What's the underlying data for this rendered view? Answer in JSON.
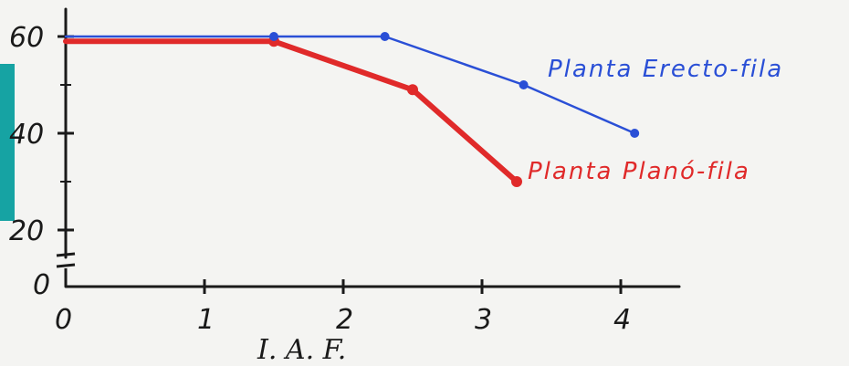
{
  "chart_data": {
    "type": "line",
    "xlabel": "I. A. F.",
    "ylabel": "",
    "xlim": [
      0,
      4.3
    ],
    "ylim": [
      15,
      62
    ],
    "x_ticks": [
      0,
      1,
      2,
      3,
      4
    ],
    "x_tick_labels": [
      "0",
      "1",
      "2",
      "3",
      "4"
    ],
    "y_ticks": [
      20,
      40,
      60
    ],
    "y_tick_labels": [
      "20",
      "40",
      "60"
    ],
    "y_zero_label": "0",
    "axis_break": true,
    "grid": false,
    "series": [
      {
        "name": "Planta Erecto-fila",
        "color": "#2a4fd6",
        "x": [
          0,
          1.5,
          2.3,
          3.3,
          4.1
        ],
        "y": [
          60,
          60,
          60,
          50,
          40
        ]
      },
      {
        "name": "Planta Planó-fila",
        "color": "#e02a2a",
        "x": [
          0,
          1.5,
          2.5,
          3.25
        ],
        "y": [
          59,
          59,
          49,
          30
        ]
      }
    ],
    "accent_bar_color": "#16a3a3"
  }
}
